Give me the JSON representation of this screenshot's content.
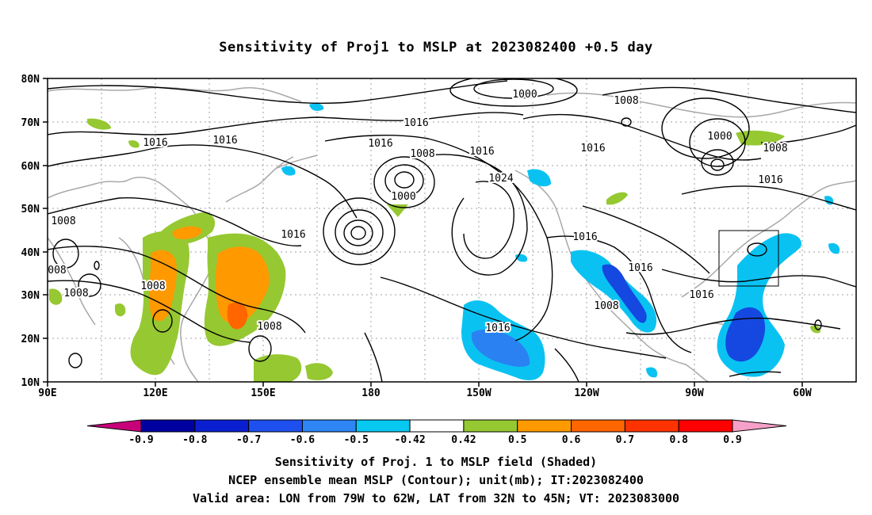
{
  "title": "Sensitivity of Proj1 to MSLP at 2023082400 +0.5 day",
  "axes": {
    "lat_labels": [
      "80N",
      "70N",
      "60N",
      "50N",
      "40N",
      "30N",
      "20N",
      "10N"
    ],
    "lon_labels": [
      "90E",
      "120E",
      "150E",
      "180",
      "150W",
      "120W",
      "90W",
      "60W"
    ]
  },
  "colorbar": {
    "labels": [
      "-0.9",
      "-0.8",
      "-0.7",
      "-0.6",
      "-0.5",
      "-0.42",
      "0.42",
      "0.5",
      "0.6",
      "0.7",
      "0.8",
      "0.9"
    ],
    "colors": [
      "#c8007a",
      "#0000a0",
      "#0a1fd0",
      "#1e50f0",
      "#2e86f5",
      "#06c8f0",
      "#ffffff",
      "#96c832",
      "#ff9900",
      "#ff6600",
      "#ff3300",
      "#ff0000",
      "#f5a0c8"
    ]
  },
  "shading_colors": {
    "blue_dark": "#1448e0",
    "blue_mid": "#2a82f2",
    "cyan": "#0ac2f2",
    "green": "#96c832",
    "orange": "#ff9900",
    "orange_dark": "#ff6600"
  },
  "isobar_labels": [
    "1000",
    "1008",
    "1016",
    "1016",
    "1016",
    "1008",
    "1000",
    "1016",
    "1024",
    "1016",
    "1016",
    "1008",
    "1000",
    "1008",
    "1016",
    "1008",
    "1008",
    "1016",
    "1008",
    "1016",
    "1016",
    "008",
    "1008",
    "1008",
    "1016",
    "1016",
    "1008"
  ],
  "captions": [
    "Sensitivity of Proj. 1 to MSLP field (Shaded)",
    "NCEP ensemble mean MSLP (Contour); unit(mb); IT:2023082400",
    "Valid area: LON from 79W to 62W, LAT from 32N to 45N; VT: 2023083000"
  ]
}
